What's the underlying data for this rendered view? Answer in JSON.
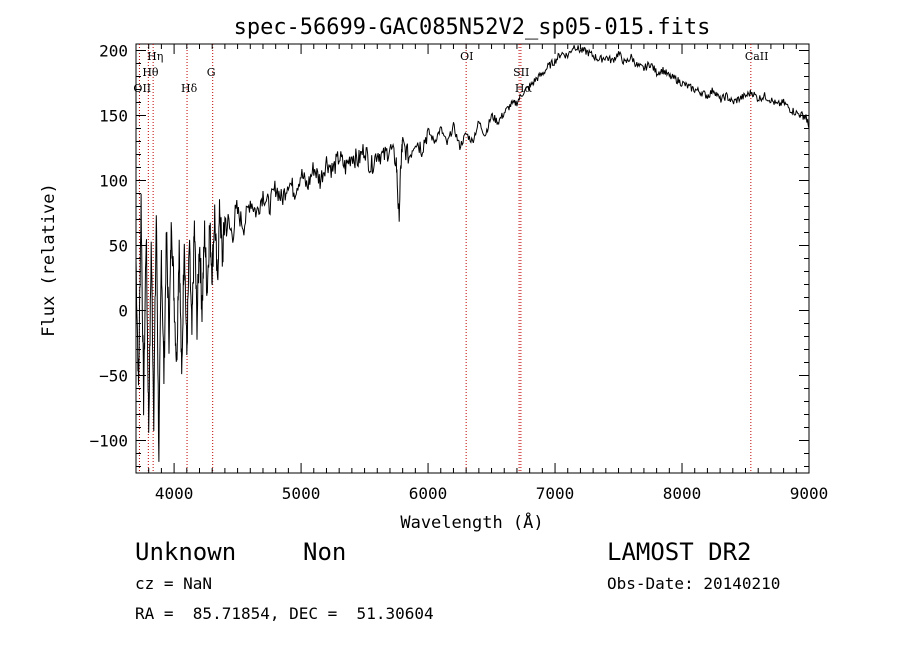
{
  "chart_data": {
    "type": "line",
    "title": "spec-56699-GAC085N52V2_sp05-015.fits",
    "xlabel": "Wavelength (Å)",
    "ylabel": "Flux (relative)",
    "xlim": [
      3700,
      9000
    ],
    "ylim": [
      -125,
      205
    ],
    "xticks": [
      4000,
      5000,
      6000,
      7000,
      8000,
      9000
    ],
    "xtick_labels": [
      "4000",
      "5000",
      "6000",
      "7000",
      "8000",
      "9000"
    ],
    "yticks": [
      -100,
      -50,
      0,
      50,
      100,
      150,
      200
    ],
    "ytick_labels": [
      "−100",
      "−50",
      "0",
      "50",
      "100",
      "150",
      "200"
    ],
    "grid": false,
    "series": [
      {
        "name": "spectrum",
        "color": "#000000",
        "x": [
          3700,
          3720,
          3740,
          3760,
          3780,
          3800,
          3820,
          3840,
          3860,
          3880,
          3900,
          3920,
          3940,
          3960,
          3980,
          4000,
          4020,
          4040,
          4060,
          4080,
          4100,
          4120,
          4140,
          4160,
          4180,
          4200,
          4220,
          4240,
          4260,
          4280,
          4300,
          4320,
          4340,
          4360,
          4380,
          4400,
          4450,
          4500,
          4550,
          4600,
          4650,
          4700,
          4750,
          4800,
          4850,
          4900,
          4950,
          5000,
          5050,
          5100,
          5150,
          5200,
          5250,
          5300,
          5350,
          5400,
          5450,
          5500,
          5550,
          5600,
          5650,
          5700,
          5750,
          5770,
          5790,
          5800,
          5850,
          5900,
          5950,
          6000,
          6050,
          6100,
          6150,
          6200,
          6250,
          6300,
          6350,
          6400,
          6450,
          6500,
          6550,
          6600,
          6650,
          6700,
          6750,
          6800,
          6850,
          6900,
          6950,
          7000,
          7050,
          7100,
          7150,
          7200,
          7250,
          7300,
          7350,
          7400,
          7450,
          7500,
          7550,
          7600,
          7650,
          7700,
          7750,
          7800,
          7850,
          7900,
          7950,
          8000,
          8050,
          8100,
          8150,
          8200,
          8250,
          8300,
          8350,
          8400,
          8450,
          8500,
          8550,
          8600,
          8650,
          8700,
          8750,
          8800,
          8850,
          8900,
          8950,
          8980,
          9000
        ],
        "y": [
          40,
          -60,
          85,
          -70,
          60,
          -90,
          50,
          -80,
          75,
          -110,
          45,
          -50,
          60,
          -20,
          70,
          10,
          -40,
          55,
          -55,
          60,
          -35,
          50,
          -20,
          65,
          -10,
          55,
          0,
          60,
          15,
          65,
          30,
          75,
          20,
          80,
          40,
          70,
          60,
          75,
          65,
          85,
          75,
          90,
          80,
          95,
          85,
          100,
          92,
          105,
          95,
          110,
          100,
          115,
          108,
          118,
          110,
          120,
          115,
          125,
          110,
          122,
          118,
          125,
          115,
          70,
          120,
          128,
          118,
          132,
          125,
          138,
          130,
          140,
          128,
          142,
          126,
          136,
          130,
          145,
          135,
          150,
          145,
          152,
          158,
          160,
          168,
          172,
          178,
          182,
          188,
          192,
          198,
          196,
          204,
          200,
          199,
          196,
          193,
          195,
          192,
          198,
          190,
          195,
          188,
          186,
          190,
          183,
          185,
          180,
          178,
          175,
          172,
          170,
          168,
          165,
          170,
          162,
          165,
          160,
          163,
          165,
          168,
          163,
          165,
          162,
          158,
          160,
          155,
          152,
          150,
          148,
          140
        ]
      }
    ],
    "lines": [
      {
        "label": "OII",
        "x": 3727
      },
      {
        "label": "Hη",
        "x": 3835
      },
      {
        "label": "Hθ",
        "x": 3797
      },
      {
        "label": "Hδ",
        "x": 4102
      },
      {
        "label": "G",
        "x": 4304
      },
      {
        "label": "OI",
        "x": 6300
      },
      {
        "label": "SII",
        "x": 6717
      },
      {
        "label": "Hα",
        "x": 6731
      },
      {
        "label": "CaII",
        "x": 8542
      }
    ]
  },
  "info": {
    "object_class": "Unknown",
    "subclass": "Non",
    "cz": "cz = NaN",
    "coords": "RA =  85.71854, DEC =  51.30604",
    "survey": "LAMOST DR2",
    "obs_date": "Obs-Date: 20140210"
  }
}
